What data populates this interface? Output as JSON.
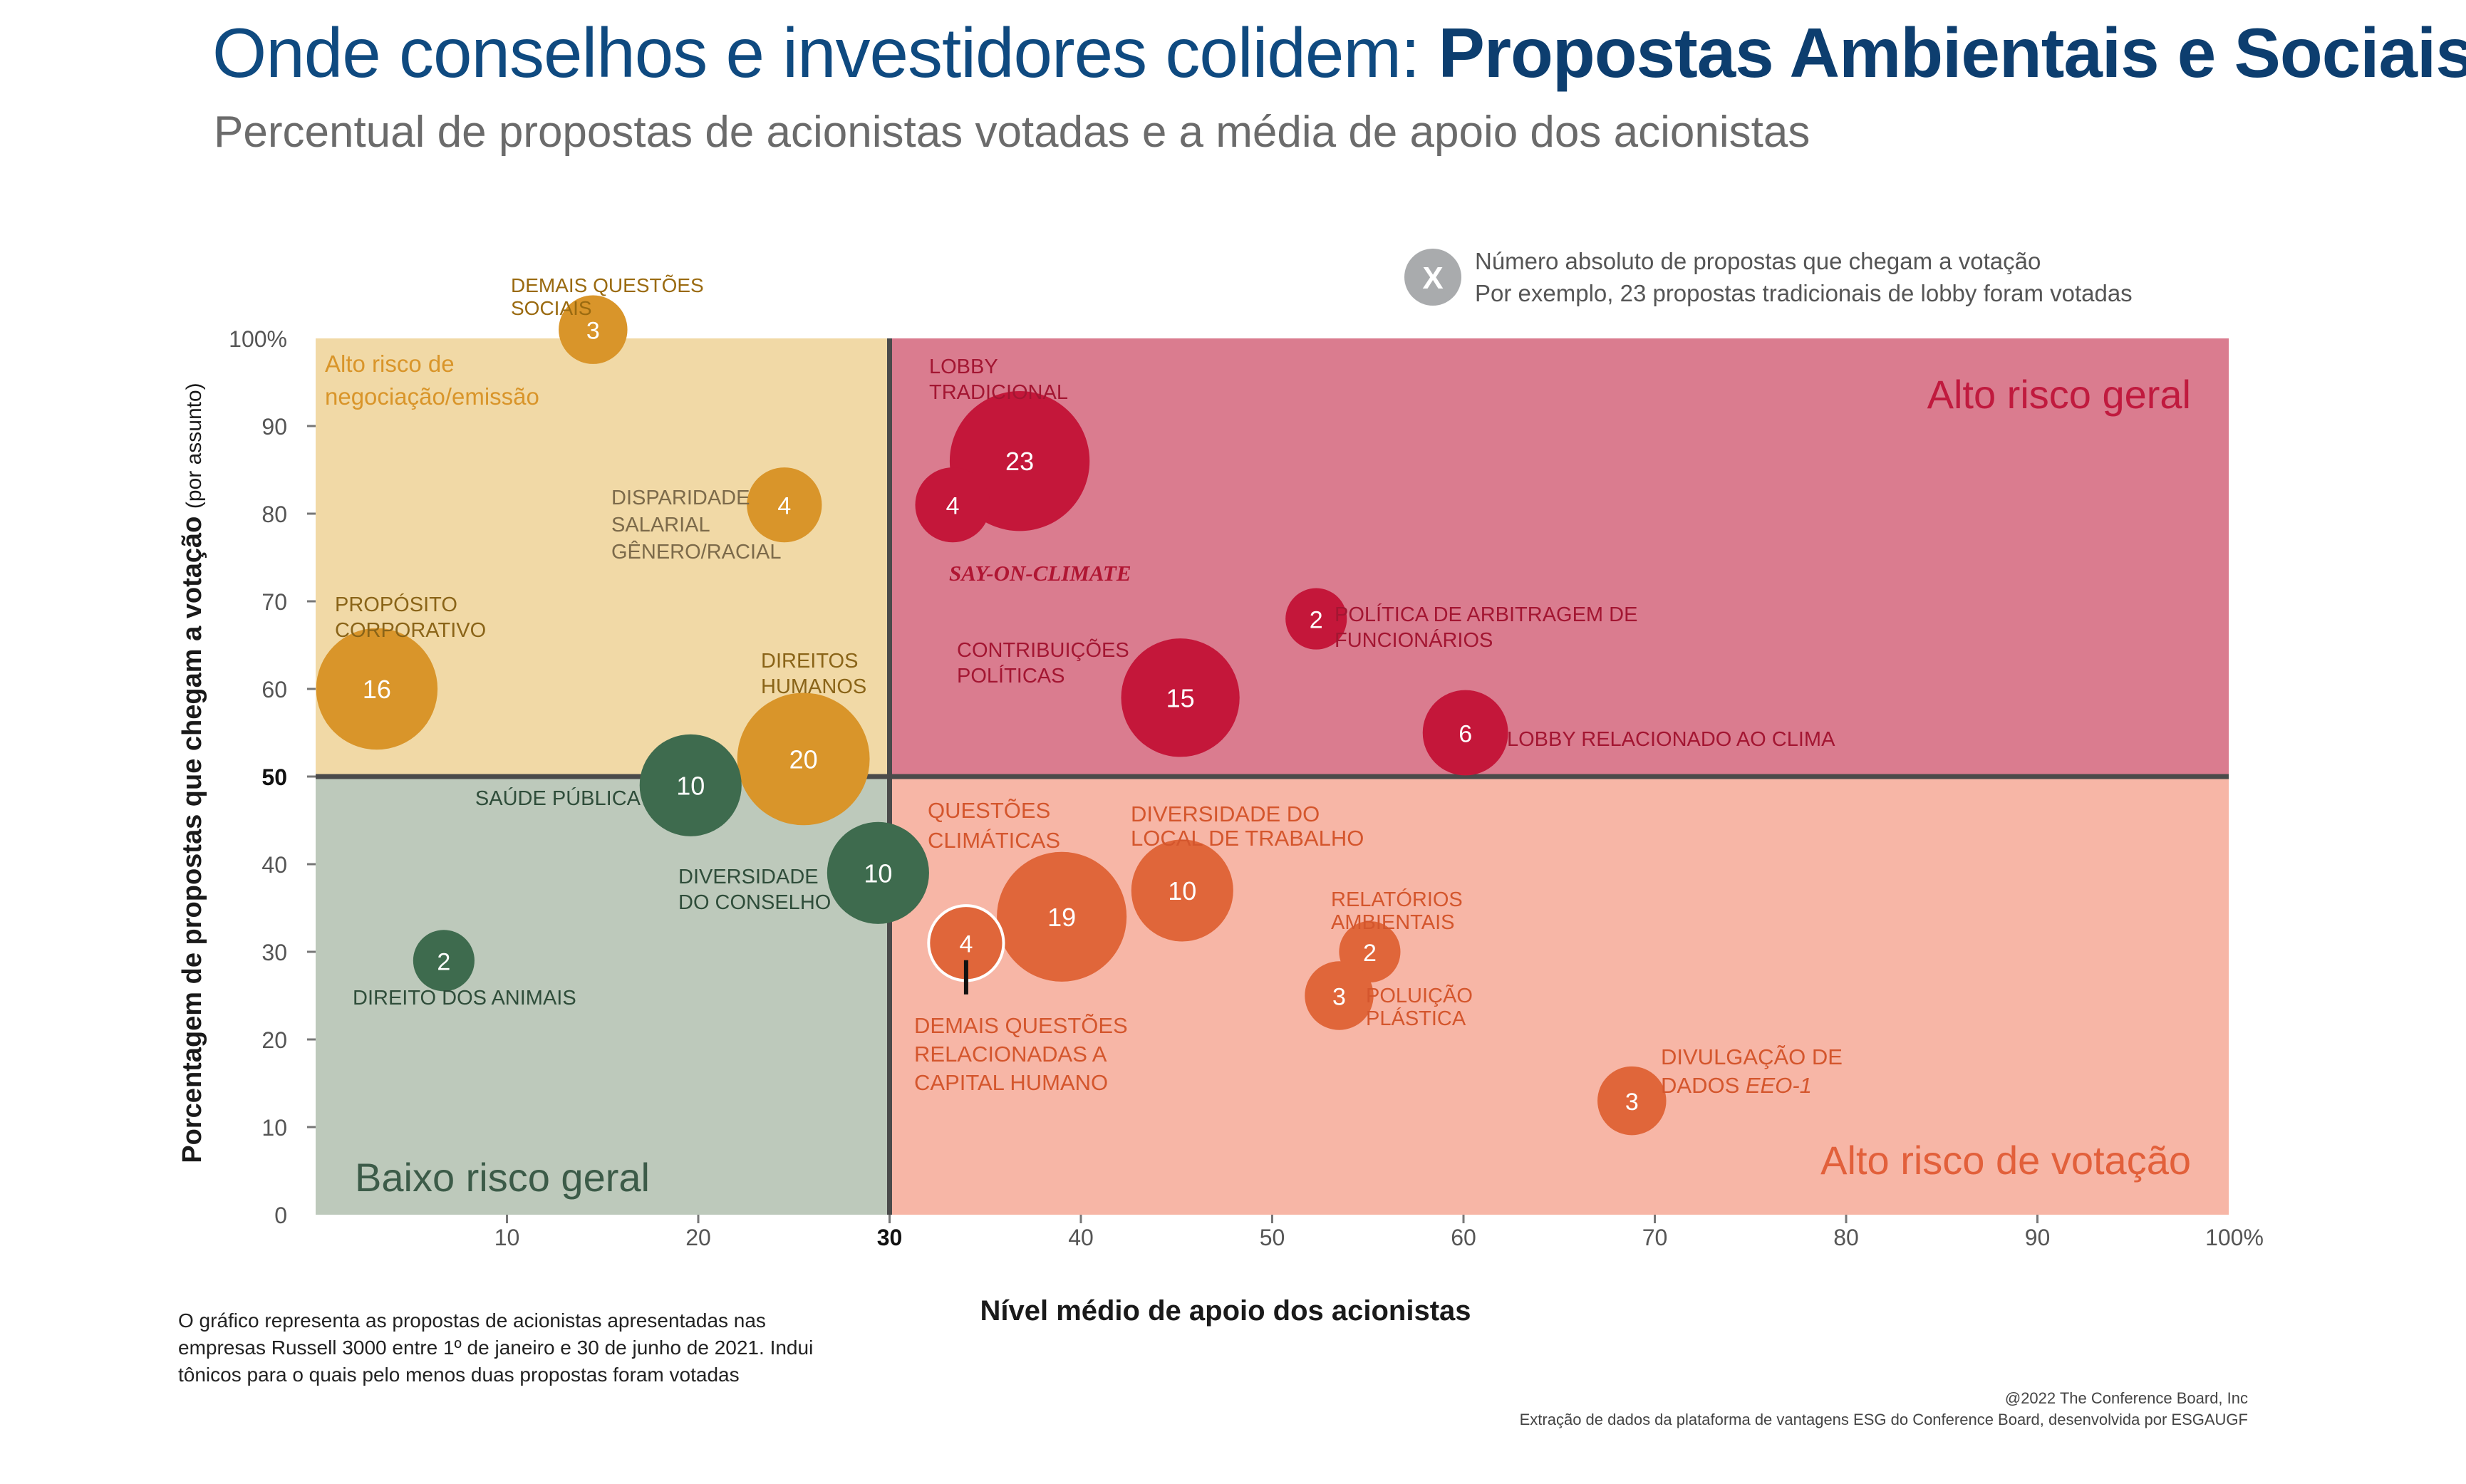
{
  "title_regular": "Onde conselhos e investidores colidem: ",
  "title_bold": "Propostas Ambientais e Sociais",
  "subtitle": "Percentual de propostas de acionistas votadas e a média de apoio dos acionistas",
  "colors": {
    "q_top_left": "#f1d9a6",
    "q_top_right": "#da7c8f",
    "q_bottom_left": "#bdc9bb",
    "q_bottom_right": "#f7b6a6",
    "amber": "#d9952a",
    "crimson": "#c4173a",
    "green": "#3e6b4e",
    "orange": "#e0663a",
    "divider": "#4a4a4a"
  },
  "legend": {
    "symbol": "X",
    "line1": "Número absoluto de propostas que chegam a votação",
    "line2": "Por exemplo, 23 propostas tradicionais de lobby foram votadas"
  },
  "note": "O gráfico representa as propostas de acionistas apresentadas nas empresas Russell 3000 entre 1º de janeiro e 30 de junho de 2021. Indui tônicos para o quais pelo menos duas propostas foram votadas",
  "credit_line1": "@2022 The Conference Board, Inc",
  "credit_line2": "Extração de dados da plataforma de vantagens ESG do Conference Board, desenvolvida por ESGAUGF",
  "chart_data": {
    "type": "scatter",
    "title": "Onde conselhos e investidores colidem: Propostas Ambientais e Sociais",
    "xlabel": "Nível médio de apoio dos acionistas",
    "ylabel": "Porcentagem de propostas que chegam a votação",
    "ylabel_suffix": "(por assunto)",
    "xlim": [
      0,
      100
    ],
    "ylim": [
      0,
      100
    ],
    "x_ticks": [
      "10",
      "20",
      "30",
      "40",
      "50",
      "60",
      "70",
      "80",
      "90",
      "100%"
    ],
    "x_tick_values": [
      10,
      20,
      30,
      40,
      50,
      60,
      70,
      80,
      90,
      100
    ],
    "y_ticks": [
      "0",
      "10",
      "20",
      "30",
      "40",
      "50",
      "60",
      "70",
      "80",
      "90",
      "100%"
    ],
    "y_tick_values": [
      0,
      10,
      20,
      30,
      40,
      50,
      60,
      70,
      80,
      90,
      100
    ],
    "x_divider": 30,
    "y_divider": 50,
    "quadrants": {
      "top_left": "Alto risco de negociação/emissão",
      "top_right": "Alto risco geral",
      "bottom_left": "Baixo risco geral",
      "bottom_right": "Alto risco de votação"
    },
    "points": [
      {
        "label": "DEMAIS QUESTÕES SOCIAIS",
        "x": 14.5,
        "y": 101,
        "count": 3,
        "group": "amber"
      },
      {
        "label": "DISPARIDADE SALARIAL GÊNERO/RACIAL",
        "x": 24.5,
        "y": 81,
        "count": 4,
        "group": "amber"
      },
      {
        "label": "PROPÓSITO CORPORATIVO",
        "x": 3.2,
        "y": 60,
        "count": 16,
        "group": "amber"
      },
      {
        "label": "DIREITOS HUMANOS",
        "x": 25.5,
        "y": 52,
        "count": 20,
        "group": "amber"
      },
      {
        "label": "LOBBY TRADICIONAL",
        "x": 36.8,
        "y": 86,
        "count": 23,
        "group": "crimson"
      },
      {
        "label": "SAY-ON-CLIMATE",
        "x": 33.3,
        "y": 81,
        "count": 4,
        "group": "crimson"
      },
      {
        "label": "POLÍTICA DE ARBITRAGEM DE FUNCIONÁRIOS",
        "x": 52.3,
        "y": 68,
        "count": 2,
        "group": "crimson"
      },
      {
        "label": "CONTRIBUIÇÕES POLÍTICAS",
        "x": 45.2,
        "y": 59,
        "count": 15,
        "group": "crimson"
      },
      {
        "label": "LOBBY RELACIONADO AO CLIMA",
        "x": 60.1,
        "y": 55,
        "count": 6,
        "group": "crimson"
      },
      {
        "label": "SAÚDE PÚBLICA",
        "x": 19.6,
        "y": 49,
        "count": 10,
        "group": "green"
      },
      {
        "label": "DIVERSIDADE DO CONSELHO",
        "x": 29.4,
        "y": 39,
        "count": 10,
        "group": "green"
      },
      {
        "label": "DIREITO DOS ANIMAIS",
        "x": 6.7,
        "y": 29,
        "count": 2,
        "group": "green"
      },
      {
        "label": "QUESTÕES CLIMÁTICAS",
        "x": 39.0,
        "y": 34,
        "count": 19,
        "group": "orange"
      },
      {
        "label": "DEMAIS QUESTÕES RELACIONADAS A CAPITAL HUMANO",
        "x": 34.0,
        "y": 31,
        "count": 4,
        "group": "orange"
      },
      {
        "label": "DIVERSIDADE DO LOCAL DE TRABALHO",
        "x": 45.3,
        "y": 37,
        "count": 10,
        "group": "orange"
      },
      {
        "label": "RELATÓRIOS AMBIENTAIS",
        "x": 55.1,
        "y": 30,
        "count": 2,
        "group": "orange"
      },
      {
        "label": "POLUIÇÃO PLÁSTICA",
        "x": 53.5,
        "y": 25,
        "count": 3,
        "group": "orange"
      },
      {
        "label": "DIVULGAÇÃO DE DADOS EEO-1",
        "x": 68.8,
        "y": 13,
        "count": 3,
        "group": "orange"
      }
    ]
  }
}
